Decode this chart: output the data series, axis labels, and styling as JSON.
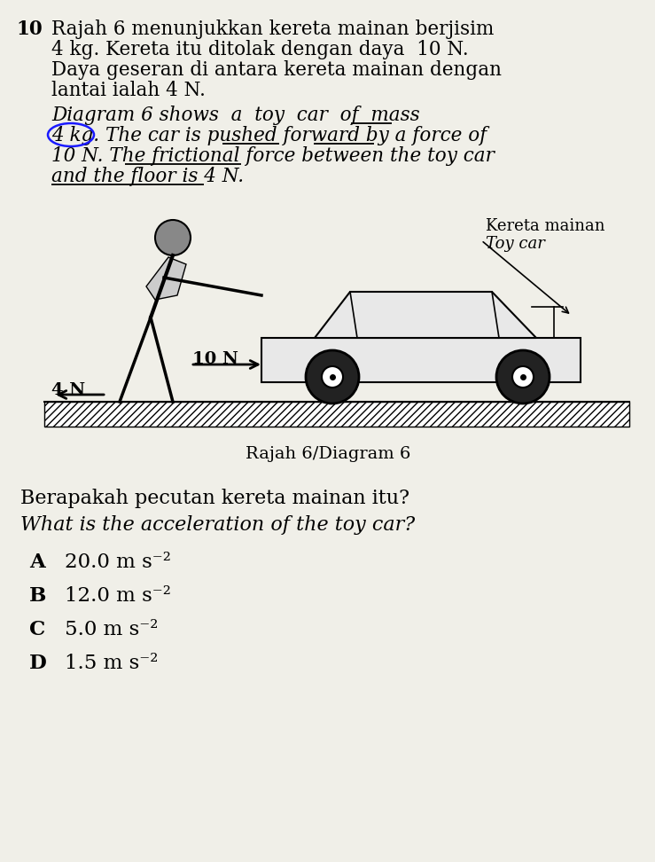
{
  "question_number": "10",
  "malay_text": [
    "Rajah 6 menunjukkan kereta mainan berjisim",
    "4 kg. Kereta itu ditolak dengan daya  10 N.",
    "Daya geseran di antara kereta mainan dengan",
    "lantai ialah 4 N."
  ],
  "diagram_label": "Rajah 6/Diagram 6",
  "label_kereta": "Kereta mainan",
  "label_toy": "Toy car",
  "force_label": "10 N",
  "friction_label": "4 N",
  "question_malay": "Berapakah pecutan kereta mainan itu?",
  "question_english": "What is the acceleration of the toy car?",
  "choices": [
    "A",
    "B",
    "C",
    "D"
  ],
  "answers": [
    "20.0 m s⁻²",
    "12.0 m s⁻²",
    "5.0 m s⁻²",
    "1.5 m s⁻²"
  ],
  "bg_color": "#f0efe8",
  "text_color": "#000000",
  "circle_color": "#1a1aff"
}
